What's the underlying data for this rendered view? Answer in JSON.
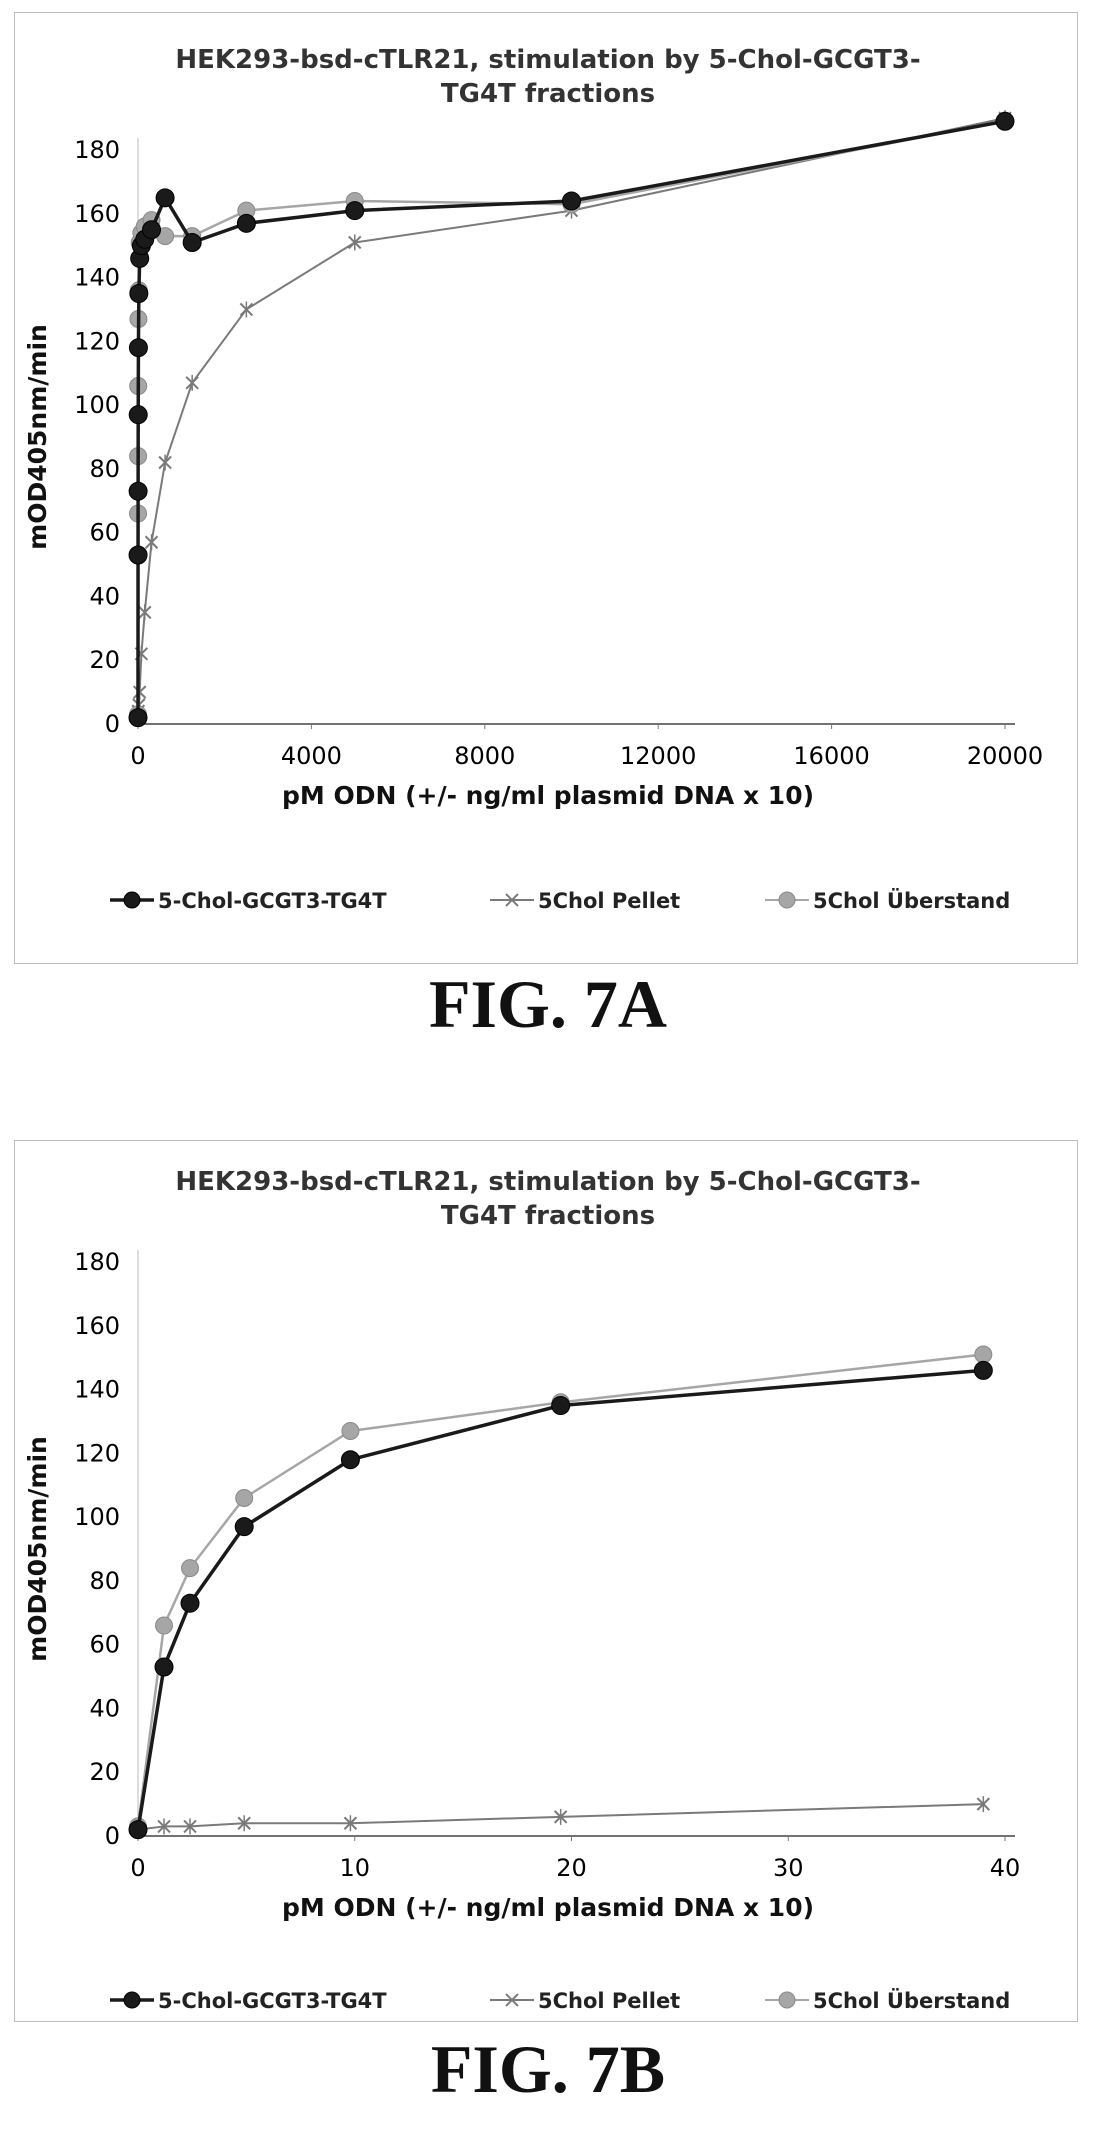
{
  "figures": [
    {
      "label": "FIG. 7A"
    },
    {
      "label": "FIG. 7B"
    }
  ],
  "chart_data": [
    {
      "type": "line",
      "title_lines": [
        "HEK293-bsd-cTLR21, stimulation by 5-Chol-GCGT3-",
        "TG4T fractions"
      ],
      "xlabel": "pM ODN (+/- ng/ml plasmid DNA  x 10)",
      "ylabel": "mOD405nm/min",
      "xlim": [
        0,
        20000
      ],
      "ylim": [
        0,
        180
      ],
      "xticks": [
        0,
        4000,
        8000,
        12000,
        16000,
        20000
      ],
      "yticks": [
        0,
        20,
        40,
        60,
        80,
        100,
        120,
        140,
        160,
        180
      ],
      "grid": false,
      "legend_position": "bottom",
      "series": [
        {
          "name": "5-Chol-GCGT3-TG4T",
          "color": "#1a1a1a",
          "marker": "circle",
          "x": [
            0,
            1.2,
            2.4,
            4.9,
            9.8,
            19.5,
            39,
            78,
            156,
            312,
            625,
            1250,
            2500,
            5000,
            10000,
            20000
          ],
          "y": [
            2,
            53,
            73,
            97,
            118,
            135,
            146,
            150,
            152,
            155,
            165,
            151,
            157,
            161,
            164,
            189
          ]
        },
        {
          "name": "5Chol Pellet",
          "color": "#7a7a7a",
          "marker": "x",
          "x": [
            0,
            1.2,
            2.4,
            4.9,
            9.8,
            19.5,
            39,
            78,
            156,
            312,
            625,
            1250,
            2500,
            5000,
            10000,
            20000
          ],
          "y": [
            2,
            3,
            3,
            4,
            4,
            6,
            10,
            22,
            35,
            57,
            82,
            107,
            130,
            151,
            161,
            190
          ]
        },
        {
          "name": "5Chol Überstand",
          "color": "#a6a6a6",
          "marker": "circle",
          "x": [
            0,
            1.2,
            2.4,
            4.9,
            9.8,
            19.5,
            39,
            78,
            156,
            312,
            625,
            1250,
            2500,
            5000,
            10000,
            20000
          ],
          "y": [
            3,
            66,
            84,
            106,
            127,
            136,
            151,
            154,
            156,
            158,
            153,
            153,
            161,
            164,
            163,
            189
          ]
        }
      ]
    },
    {
      "type": "line",
      "title_lines": [
        "HEK293-bsd-cTLR21, stimulation by 5-Chol-GCGT3-",
        "TG4T fractions"
      ],
      "xlabel": "pM ODN (+/- ng/ml plasmid DNA  x 10)",
      "ylabel": "mOD405nm/min",
      "xlim": [
        0,
        40
      ],
      "ylim": [
        0,
        180
      ],
      "xticks": [
        0,
        10,
        20,
        30,
        40
      ],
      "yticks": [
        0,
        20,
        40,
        60,
        80,
        100,
        120,
        140,
        160,
        180
      ],
      "grid": false,
      "legend_position": "bottom",
      "series": [
        {
          "name": "5-Chol-GCGT3-TG4T",
          "color": "#1a1a1a",
          "marker": "circle",
          "x": [
            0,
            1.2,
            2.4,
            4.9,
            9.8,
            19.5,
            39
          ],
          "y": [
            2,
            53,
            73,
            97,
            118,
            135,
            146
          ]
        },
        {
          "name": "5Chol Pellet",
          "color": "#7a7a7a",
          "marker": "x",
          "x": [
            0,
            1.2,
            2.4,
            4.9,
            9.8,
            19.5,
            39
          ],
          "y": [
            2,
            3,
            3,
            4,
            4,
            6,
            10
          ]
        },
        {
          "name": "5Chol Überstand",
          "color": "#a6a6a6",
          "marker": "circle",
          "x": [
            0,
            1.2,
            2.4,
            4.9,
            9.8,
            19.5,
            39
          ],
          "y": [
            3,
            66,
            84,
            106,
            127,
            136,
            151
          ]
        }
      ]
    }
  ]
}
